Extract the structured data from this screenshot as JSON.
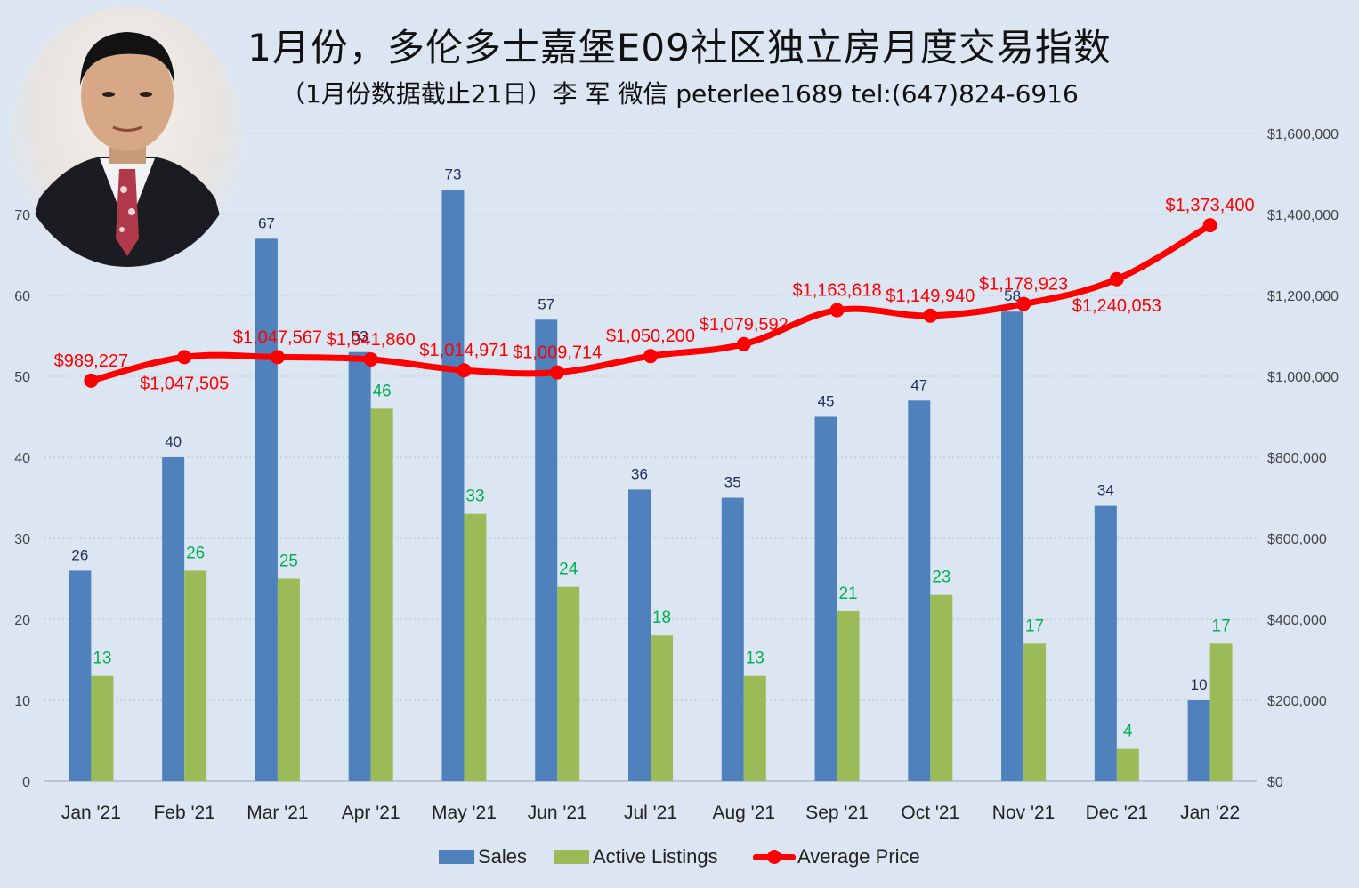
{
  "header": {
    "title": "1月份，多伦多士嘉堡E09社区独立房月度交易指数",
    "subtitle": "（1月份数据截止21日）李 军 微信 peterlee1689  tel:(647)824-6916"
  },
  "colors": {
    "sales": "#4f81bd",
    "listings": "#9bbb59",
    "price": "#ff0000",
    "sales_label": "#1f2d5a",
    "listings_label": "#00b050",
    "background": "#dce6f2"
  },
  "legend": {
    "sales": "Sales",
    "listings": "Active Listings",
    "price": "Average Price"
  },
  "chart_data": {
    "type": "bar",
    "categories": [
      "Jan '21",
      "Feb '21",
      "Mar '21",
      "Apr '21",
      "May '21",
      "Jun '21",
      "Jul '21",
      "Aug '21",
      "Sep '21",
      "Oct '21",
      "Nov '21",
      "Dec '21",
      "Jan '22"
    ],
    "series": [
      {
        "name": "Sales",
        "type": "bar",
        "axis": "left",
        "values": [
          26,
          40,
          67,
          53,
          73,
          57,
          36,
          35,
          45,
          47,
          58,
          34,
          10
        ],
        "labels": [
          "26",
          "40",
          "67",
          "53",
          "73",
          "57",
          "36",
          "35",
          "45",
          "47",
          "58",
          "34",
          "10"
        ]
      },
      {
        "name": "Active Listings",
        "type": "bar",
        "axis": "left",
        "values": [
          13,
          26,
          25,
          46,
          33,
          24,
          18,
          13,
          21,
          23,
          17,
          4,
          17
        ],
        "labels": [
          "13",
          "26",
          "25",
          "46",
          "33",
          "24",
          "18",
          "13",
          "21",
          "23",
          "17",
          "4",
          "17"
        ]
      },
      {
        "name": "Average Price",
        "type": "line",
        "axis": "right",
        "values": [
          989227,
          1047505,
          1047567,
          1041860,
          1014971,
          1009714,
          1050200,
          1079592,
          1163618,
          1149940,
          1178923,
          1240053,
          1373400
        ],
        "labels": [
          "$989,227",
          "$1,047,505",
          "$1,047,567",
          "$1,041,860",
          "$1,014,971",
          "$1,009,714",
          "$1,050,200",
          "$1,079,592",
          "$1,163,618",
          "$1,149,940",
          "$1,178,923",
          "$1,240,053",
          "$1,373,400"
        ]
      }
    ],
    "y_left": {
      "range": [
        0,
        80
      ],
      "ticks": [
        "0",
        "10",
        "20",
        "30",
        "40",
        "50",
        "60",
        "70",
        "80"
      ]
    },
    "y_right": {
      "range": [
        0,
        1600000
      ],
      "ticks": [
        "$0",
        "$200,000",
        "$400,000",
        "$600,000",
        "$800,000",
        "$1,000,000",
        "$1,200,000",
        "$1,400,000",
        "$1,600,000"
      ]
    },
    "grid": true,
    "legend_position": "bottom"
  }
}
